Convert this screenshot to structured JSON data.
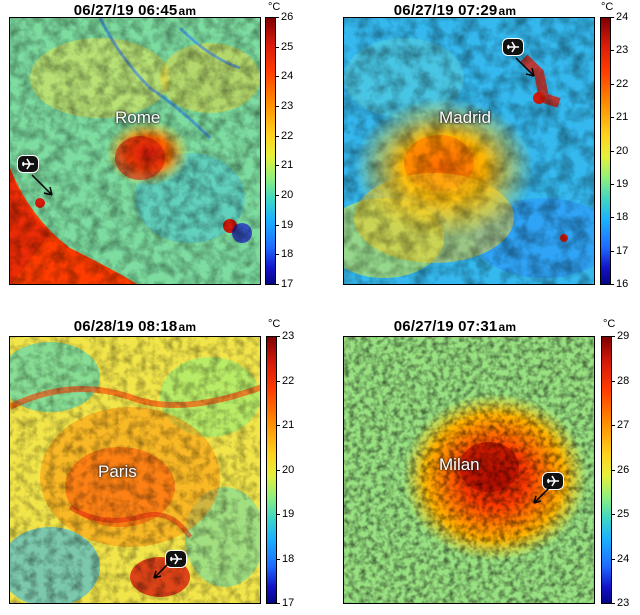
{
  "colorbar_gradient": [
    "#7f0000",
    "#d81b0b",
    "#ff3c00",
    "#ff8c00",
    "#ffd21e",
    "#e6f03a",
    "#92f07a",
    "#3fd7c4",
    "#1bb0ff",
    "#1f6cff",
    "#1313c8",
    "#060684"
  ],
  "panels": [
    {
      "id": "rome",
      "title_date": "06/27/19 06:45",
      "title_ampm": "am",
      "city": "Rome",
      "unit": "°C",
      "ticks": [
        "26",
        "25",
        "24",
        "23",
        "22",
        "21",
        "20",
        "19",
        "18",
        "17"
      ],
      "airport_icon": "airplane-icon"
    },
    {
      "id": "madrid",
      "title_date": "06/27/19 07:29",
      "title_ampm": "am",
      "city": "Madrid",
      "unit": "°C",
      "ticks": [
        "24",
        "23",
        "22",
        "21",
        "20",
        "19",
        "18",
        "17",
        "16"
      ],
      "airport_icon": "airplane-icon"
    },
    {
      "id": "paris",
      "title_date": "06/28/19 08:18",
      "title_ampm": "am",
      "city": "Paris",
      "unit": "°C",
      "ticks": [
        "23",
        "22",
        "21",
        "20",
        "19",
        "18",
        "17"
      ],
      "airport_icon": "airplane-icon"
    },
    {
      "id": "milan",
      "title_date": "06/27/19 07:31",
      "title_ampm": "am",
      "city": "Milan",
      "unit": "°C",
      "ticks": [
        "29",
        "28",
        "27",
        "26",
        "25",
        "24",
        "23"
      ],
      "airport_icon": "airplane-icon"
    }
  ]
}
